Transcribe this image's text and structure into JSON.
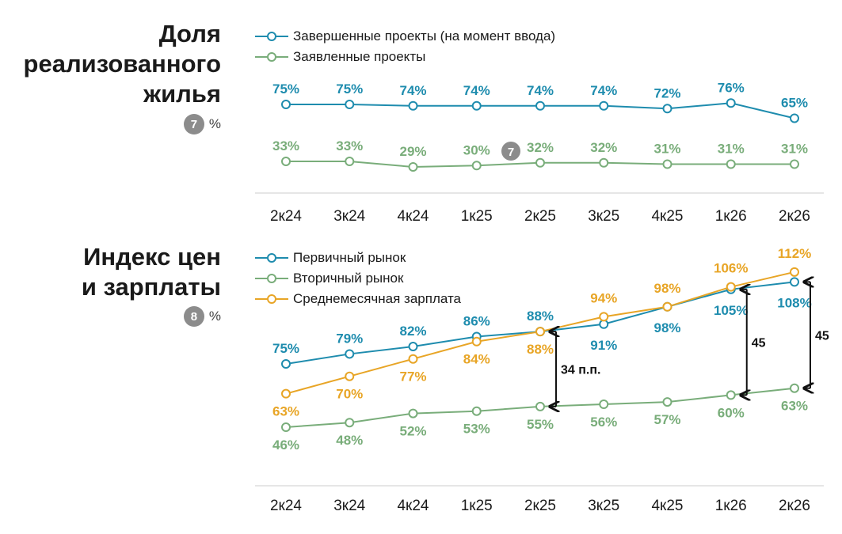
{
  "colors": {
    "blue": "#1e8cae",
    "green": "#79ad7a",
    "orange": "#e8a526",
    "badge": "#8c8c8c",
    "axis": "#cccccc",
    "arrow": "#111111"
  },
  "chart_data": [
    {
      "type": "line",
      "title": "Доля реализованного жилья",
      "note_badge": "7",
      "note_unit": "%",
      "inline_badge": "7",
      "categories": [
        "2к24",
        "3к24",
        "4к24",
        "1к25",
        "2к25",
        "3к25",
        "4к25",
        "1к26",
        "2к26"
      ],
      "series": [
        {
          "name": "Завершенные проекты (на момент ввода)",
          "color": "#1e8cae",
          "values": [
            75,
            75,
            74,
            74,
            74,
            74,
            72,
            76,
            65
          ],
          "labels": [
            "75%",
            "75%",
            "74%",
            "74%",
            "74%",
            "74%",
            "72%",
            "76%",
            "65%"
          ]
        },
        {
          "name": "Заявленные проекты",
          "color": "#79ad7a",
          "values": [
            33,
            33,
            29,
            30,
            32,
            32,
            31,
            31,
            31
          ],
          "labels": [
            "33%",
            "33%",
            "29%",
            "30%",
            "32%",
            "32%",
            "31%",
            "31%",
            "31%"
          ]
        }
      ],
      "grid": false,
      "legend_position": "top-left"
    },
    {
      "type": "line",
      "title": "Индекс цен\nи зарплаты",
      "note_badge": "8",
      "note_unit": "%",
      "categories": [
        "2к24",
        "3к24",
        "4к24",
        "1к25",
        "2к25",
        "3к25",
        "4к25",
        "1к26",
        "2к26"
      ],
      "series": [
        {
          "name": "Первичный рынок",
          "color": "#1e8cae",
          "values": [
            75,
            79,
            82,
            86,
            88,
            91,
            98,
            105,
            108
          ],
          "labels": [
            "75%",
            "79%",
            "82%",
            "86%",
            "88%",
            "91%",
            "98%",
            "105%",
            "108%"
          ]
        },
        {
          "name": "Вторичный рынок",
          "color": "#79ad7a",
          "values": [
            46,
            48,
            52,
            53,
            55,
            56,
            57,
            60,
            63
          ],
          "labels": [
            "46%",
            "48%",
            "52%",
            "53%",
            "55%",
            "56%",
            "57%",
            "60%",
            "63%"
          ]
        },
        {
          "name": "Среднемесячная зарплата",
          "color": "#e8a526",
          "values": [
            63,
            70,
            77,
            84,
            88,
            94,
            98,
            106,
            112
          ],
          "labels": [
            "63%",
            "70%",
            "77%",
            "84%",
            "88%",
            "94%",
            "98%",
            "106%",
            "112%"
          ]
        }
      ],
      "annotations": [
        {
          "text": "34 п.п.",
          "category": "2к25"
        },
        {
          "text": "45",
          "category": "1к26"
        },
        {
          "text": "45",
          "category": "2к26"
        }
      ],
      "grid": false,
      "legend_position": "top-left"
    }
  ]
}
